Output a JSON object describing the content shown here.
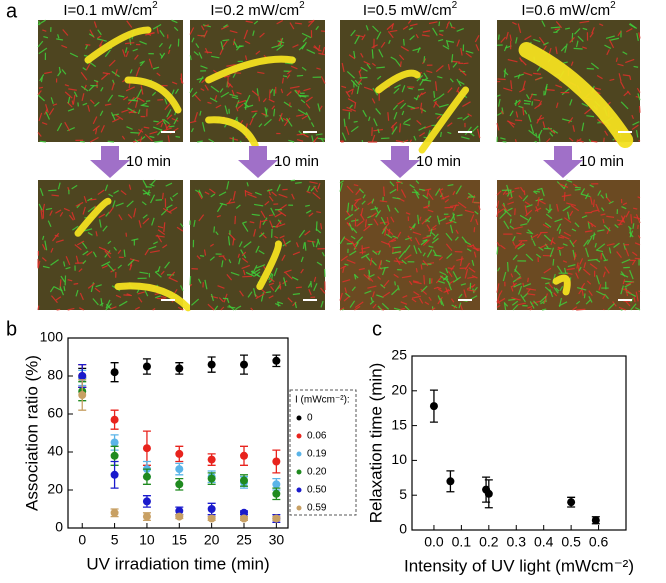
{
  "figure": {
    "panel_labels": [
      "a",
      "b",
      "c"
    ],
    "intensity_labels": [
      {
        "text": "I=0.1 mW/cm",
        "sup": "2"
      },
      {
        "text": "I=0.2 mW/cm",
        "sup": "2"
      },
      {
        "text": "I=0.5 mW/cm",
        "sup": "2"
      },
      {
        "text": "I=0.6 mW/cm",
        "sup": "2"
      }
    ],
    "arrow_labels": [
      "10 min",
      "10 min",
      "10 min",
      "10 min"
    ]
  },
  "chart_data": [
    {
      "type": "scatter",
      "x_label": "UV irradiation time (min)",
      "y_label": "Association ratio (%)",
      "legend_title": "I (mWcm⁻²):",
      "x": [
        0,
        5,
        10,
        15,
        20,
        25,
        30
      ],
      "xlim": [
        -2.2,
        31.8
      ],
      "xticks": [
        0,
        5,
        10,
        15,
        20,
        25,
        30
      ],
      "ylim": [
        0,
        100
      ],
      "yticks": [
        0,
        20,
        40,
        60,
        80,
        100
      ],
      "series": [
        {
          "name": "0",
          "color": "#000000",
          "values": [
            79,
            82,
            85,
            84,
            86,
            86,
            88
          ],
          "errors": [
            5,
            5,
            4,
            3,
            4,
            5,
            3
          ]
        },
        {
          "name": "0.06",
          "color": "#e8231d",
          "values": [
            80,
            57,
            42,
            39,
            36,
            38,
            35
          ],
          "errors": [
            6,
            5,
            9,
            4,
            3,
            5,
            6
          ]
        },
        {
          "name": "0.19",
          "color": "#5ab4e8",
          "values": [
            79,
            45,
            31,
            31,
            27,
            24,
            23
          ],
          "errors": [
            4,
            4,
            4,
            3,
            3,
            3,
            3
          ]
        },
        {
          "name": "0.20",
          "color": "#1f8a1f",
          "values": [
            72,
            38,
            27,
            23,
            26,
            25,
            18
          ],
          "errors": [
            5,
            5,
            4,
            3,
            3,
            3,
            3
          ]
        },
        {
          "name": "0.50",
          "color": "#1a1acc",
          "values": [
            80,
            28,
            14,
            9,
            10,
            8,
            5
          ],
          "errors": [
            6,
            7,
            3,
            2,
            3,
            1,
            2
          ]
        },
        {
          "name": "0.59",
          "color": "#c8a064",
          "values": [
            70,
            8,
            6,
            6,
            5,
            5,
            5
          ],
          "errors": [
            8,
            2,
            2,
            1,
            1,
            1,
            1
          ]
        }
      ]
    },
    {
      "type": "scatter",
      "x_label": "Intensity of UV light (mWcm⁻²)",
      "y_label": "Relaxation time (min)",
      "x": [
        0,
        0.06,
        0.19,
        0.2,
        0.5,
        0.59
      ],
      "values": [
        17.8,
        7.0,
        5.8,
        5.2,
        4.0,
        1.4
      ],
      "errors": [
        2.3,
        1.5,
        1.8,
        2.0,
        0.7,
        0.5
      ],
      "color": "#000000",
      "xlim": [
        -0.08,
        0.7
      ],
      "xticks": [
        {
          "value": 0,
          "label": "0.0"
        },
        0.1,
        0.2,
        0.3,
        0.4,
        0.5,
        0.6
      ],
      "ylim": [
        0,
        25
      ],
      "yticks": [
        0,
        5,
        10,
        15,
        20,
        25
      ]
    }
  ]
}
